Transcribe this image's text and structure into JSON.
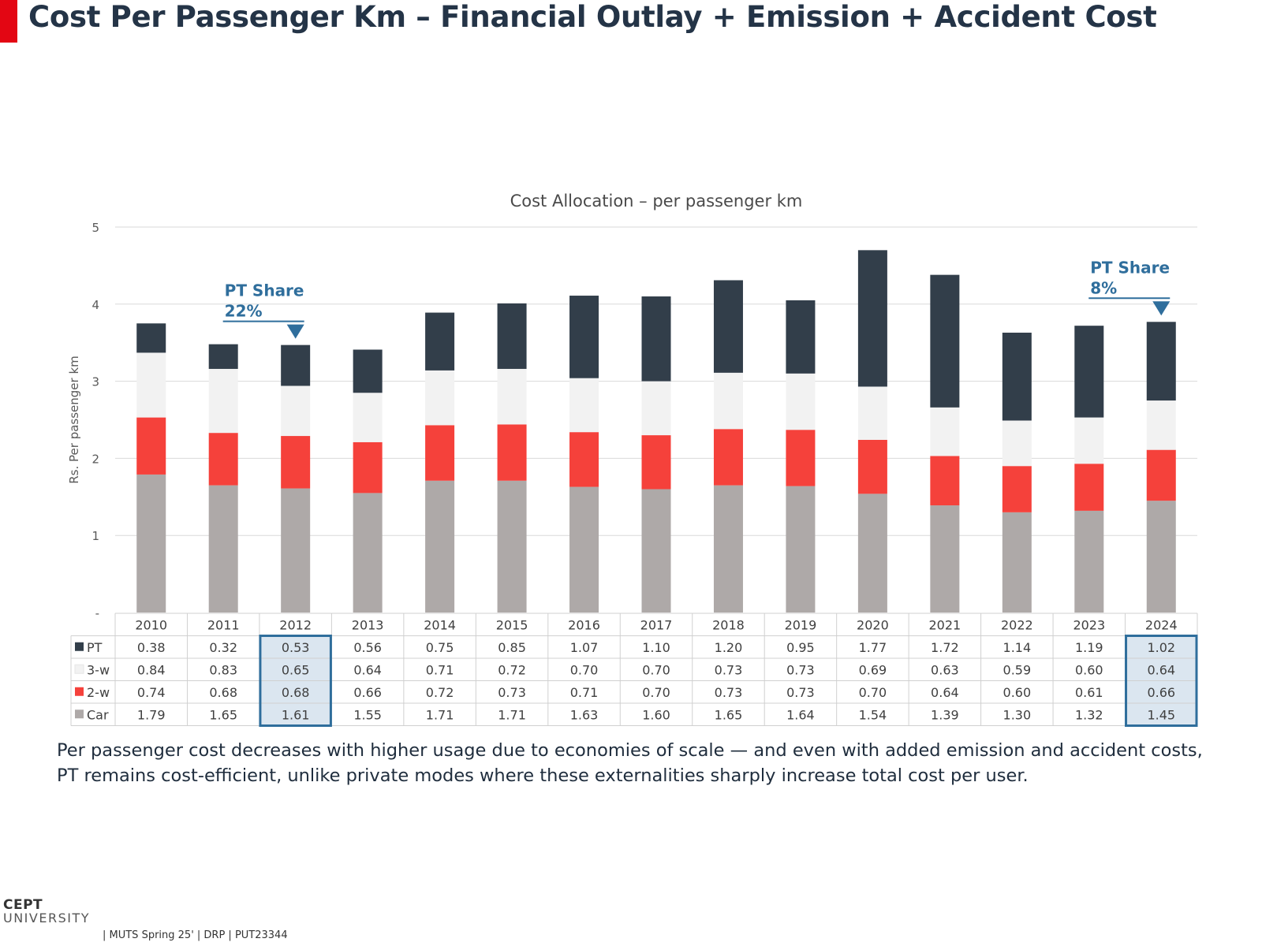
{
  "page": {
    "title": "Cost Per Passenger Km – Financial Outlay + Emission + Accident Cost",
    "caption": "Per passenger cost decreases with higher usage due to economies of scale — and even with added emission and accident costs, PT remains cost-efficient, unlike private modes where these externalities sharply increase total cost per user.",
    "footer": {
      "logo_top": "CEPT",
      "logo_bottom": "UNIVERSITY",
      "text": "| MUTS Spring 25' | DRP | PUT23344"
    }
  },
  "colors": {
    "accent": "#e30613",
    "title": "#243447",
    "pt": "#323e4a",
    "three_w": "#f2f2f2",
    "two_w": "#f5413b",
    "car": "#aea9a8",
    "annotation": "#2f6e9c",
    "highlight_fill": "#dbe6f0"
  },
  "chart_data": {
    "type": "bar",
    "stacked": true,
    "title": "Cost Allocation – per passenger km",
    "ylabel": "Rs. Per passenger km",
    "ylim": [
      0,
      5
    ],
    "yticks": [
      "-",
      "1",
      "2",
      "3",
      "4",
      "5"
    ],
    "grid": true,
    "categories": [
      "2010",
      "2011",
      "2012",
      "2013",
      "2014",
      "2015",
      "2016",
      "2017",
      "2018",
      "2019",
      "2020",
      "2021",
      "2022",
      "2023",
      "2024"
    ],
    "series": [
      {
        "name": "Car",
        "values": [
          1.79,
          1.65,
          1.61,
          1.55,
          1.71,
          1.71,
          1.63,
          1.6,
          1.65,
          1.64,
          1.54,
          1.39,
          1.3,
          1.32,
          1.45
        ]
      },
      {
        "name": "2-w",
        "values": [
          0.74,
          0.68,
          0.68,
          0.66,
          0.72,
          0.73,
          0.71,
          0.7,
          0.73,
          0.73,
          0.7,
          0.64,
          0.6,
          0.61,
          0.66
        ]
      },
      {
        "name": "3-w",
        "values": [
          0.84,
          0.83,
          0.65,
          0.64,
          0.71,
          0.72,
          0.7,
          0.7,
          0.73,
          0.73,
          0.69,
          0.63,
          0.59,
          0.6,
          0.64
        ]
      },
      {
        "name": "PT",
        "values": [
          0.38,
          0.32,
          0.53,
          0.56,
          0.75,
          0.85,
          1.07,
          1.1,
          1.2,
          0.95,
          1.77,
          1.72,
          1.14,
          1.19,
          1.02
        ]
      }
    ],
    "table_row_order": [
      "PT",
      "3-w",
      "2-w",
      "Car"
    ],
    "highlight_categories": [
      "2012",
      "2024"
    ],
    "annotations": [
      {
        "category": "2012",
        "line1": "PT Share",
        "line2": "22%"
      },
      {
        "category": "2024",
        "line1": "PT Share",
        "line2": "8%"
      }
    ]
  }
}
